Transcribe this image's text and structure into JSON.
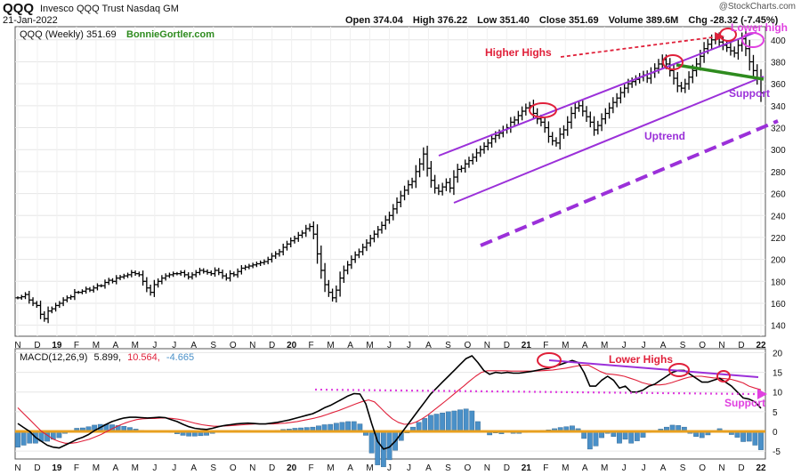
{
  "header": {
    "symbol": "QQQ",
    "name": "Invesco QQQ Trust Nasdaq GM",
    "watermark": "@StockCharts.com",
    "date": "21-Jan-2022",
    "open_label": "Open",
    "open": "374.04",
    "high_label": "High",
    "high": "376.22",
    "low_label": "Low",
    "low": "351.40",
    "close_label": "Close",
    "close": "351.69",
    "volume_label": "Volume",
    "volume": "389.6M",
    "chg_label": "Chg",
    "chg": "-28.32 (-7.45%)"
  },
  "colors": {
    "price": "#000000",
    "channel": "#9b30d9",
    "support_dashed": "#9b30d9",
    "green_line": "#2e8b1e",
    "circle": "#e0203a",
    "pink": "#e040e0",
    "annotation_red": "#e0203a",
    "annotation_purple": "#9b30d9",
    "macd_line": "#000000",
    "signal_line": "#e0203a",
    "histogram": "#4a90c8",
    "zero_line": "#e8a020",
    "watermark_green": "#2e8b1e"
  },
  "chart_data": [
    {
      "type": "line",
      "title": "QQQ (Weekly) 351.69",
      "source_tag": "BonnieGortler.com",
      "x_ticks": [
        "N",
        "D",
        "19",
        "F",
        "M",
        "A",
        "M",
        "J",
        "J",
        "A",
        "S",
        "O",
        "N",
        "D",
        "20",
        "F",
        "M",
        "A",
        "M",
        "J",
        "J",
        "A",
        "S",
        "O",
        "N",
        "D",
        "21",
        "F",
        "M",
        "A",
        "M",
        "J",
        "J",
        "A",
        "S",
        "O",
        "N",
        "D",
        "22"
      ],
      "y_ticks": [
        140,
        160,
        180,
        200,
        220,
        240,
        260,
        280,
        300,
        320,
        340,
        360,
        380,
        400
      ],
      "ylim": [
        130,
        412
      ],
      "series": [
        {
          "values": [
            165,
            166,
            168,
            163,
            160,
            158,
            150,
            146,
            153,
            155,
            158,
            160,
            163,
            165,
            166,
            170,
            170,
            171,
            173,
            172,
            174,
            176,
            176,
            179,
            181,
            180,
            183,
            184,
            185,
            186,
            188,
            187,
            186,
            180,
            174,
            170,
            177,
            180,
            183,
            185,
            186,
            187,
            187,
            188,
            186,
            184,
            186,
            188,
            190,
            189,
            188,
            187,
            190,
            188,
            185,
            183,
            187,
            186,
            189,
            192,
            193,
            194,
            195,
            196,
            197,
            198,
            200,
            203,
            205,
            207,
            211,
            214,
            217,
            219,
            222,
            224,
            228,
            230,
            223,
            205,
            190,
            177,
            170,
            165,
            172,
            183,
            190,
            195,
            200,
            204,
            207,
            211,
            215,
            219,
            223,
            227,
            231,
            236,
            240,
            246,
            252,
            258,
            263,
            268,
            271,
            280,
            287,
            296,
            283,
            272,
            265,
            262,
            266,
            270,
            265,
            275,
            282,
            283,
            287,
            290,
            293,
            297,
            300,
            303,
            306,
            310,
            313,
            315,
            318,
            320,
            325,
            327,
            331,
            335,
            338,
            340,
            333,
            328,
            325,
            320,
            312,
            308,
            306,
            314,
            318,
            325,
            333,
            338,
            340,
            335,
            330,
            325,
            318,
            322,
            328,
            333,
            338,
            343,
            347,
            352,
            356,
            360,
            362,
            364,
            366,
            368,
            365,
            370,
            374,
            378,
            382,
            378,
            372,
            365,
            358,
            356,
            360,
            366,
            372,
            378,
            385,
            392,
            396,
            400,
            402,
            398,
            395,
            393,
            390,
            388,
            395,
            401,
            392,
            380,
            372,
            365,
            351.69
          ],
          "low_high_ranges_included": false
        }
      ],
      "annotations": [
        "Higher Highs",
        "Lower high",
        "Uptrend",
        "Support"
      ]
    },
    {
      "type": "line",
      "title": "MACD(12,26,9) 5.899, 10.564, -4.665",
      "title_parts": [
        "MACD(12,26,9)",
        "5.899,",
        "10.564,",
        "-4.665"
      ],
      "x_ticks": [
        "N",
        "D",
        "19",
        "F",
        "M",
        "A",
        "M",
        "J",
        "J",
        "A",
        "S",
        "O",
        "N",
        "D",
        "20",
        "F",
        "M",
        "A",
        "M",
        "J",
        "J",
        "A",
        "S",
        "O",
        "N",
        "D",
        "21",
        "F",
        "M",
        "A",
        "M",
        "J",
        "J",
        "A",
        "S",
        "O",
        "N",
        "D",
        "22"
      ],
      "y_ticks": [
        -5,
        0,
        5,
        10,
        15,
        20
      ],
      "ylim": [
        -7,
        21
      ],
      "series": [
        {
          "name": "MACD",
          "values": [
            2,
            1,
            0,
            -1.5,
            -2.5,
            -3.5,
            -4,
            -4.2,
            -3.5,
            -2.8,
            -2,
            -1.5,
            -0.8,
            0.2,
            1,
            1.8,
            2.5,
            3,
            3.4,
            3.6,
            3.6,
            3.5,
            3.4,
            3.5,
            3.6,
            3.5,
            3,
            2.5,
            1.8,
            1.2,
            0.8,
            0.6,
            0.5,
            0.8,
            1.2,
            1.5,
            1.7,
            1.9,
            2,
            2.1,
            2,
            1.9,
            1.9,
            2.1,
            2.3,
            2.6,
            2.9,
            3.3,
            3.7,
            4.1,
            4.5,
            5.2,
            6,
            6.6,
            7.4,
            8.2,
            9,
            9.6,
            9.5,
            7,
            2,
            -2.5,
            -4.5,
            -4,
            -2.5,
            -0.5,
            1.5,
            3.5,
            5.5,
            7.5,
            9.5,
            11,
            12.5,
            14,
            15.5,
            17,
            18.5,
            19.2,
            17.5,
            15.5,
            14.5,
            15,
            14.8,
            15,
            14.8,
            14.8,
            15,
            15.2,
            15.5,
            15.8,
            16,
            16.5,
            17,
            17.5,
            18,
            17.5,
            15,
            11.5,
            11.5,
            13,
            14,
            13,
            11,
            11.5,
            10,
            10,
            10.5,
            11.5,
            12,
            13,
            14,
            15,
            15.5,
            15.5,
            14.5,
            13.5,
            12.5,
            12.5,
            13,
            13.5,
            12.5,
            11.5,
            10,
            8.5,
            8.2,
            7.5,
            5.899
          ]
        },
        {
          "name": "Signal",
          "values": [
            6,
            4.5,
            3,
            1.5,
            0,
            -1,
            -2,
            -2.6,
            -3,
            -3,
            -2.8,
            -2.4,
            -2,
            -1.4,
            -0.8,
            0,
            0.8,
            1.5,
            2.1,
            2.6,
            3,
            3.2,
            3.3,
            3.3,
            3.4,
            3.4,
            3.3,
            3.1,
            2.8,
            2.4,
            2,
            1.7,
            1.5,
            1.3,
            1.3,
            1.4,
            1.5,
            1.6,
            1.7,
            1.8,
            1.9,
            1.9,
            1.9,
            1.9,
            2,
            2.1,
            2.3,
            2.5,
            2.8,
            3.1,
            3.4,
            3.8,
            4.3,
            4.8,
            5.3,
            5.9,
            6.5,
            7.1,
            7.6,
            8,
            7.5,
            6,
            4.5,
            3.2,
            2.3,
            1.8,
            1.9,
            2.4,
            3.2,
            4.2,
            5.4,
            6.6,
            7.8,
            9,
            10.3,
            11.5,
            12.8,
            14,
            15,
            15.4,
            15.4,
            15.4,
            15.4,
            15.3,
            15.3,
            15.3,
            15.3,
            15.3,
            15.4,
            15.5,
            15.6,
            15.8,
            16,
            16.3,
            16.6,
            16.8,
            16.8,
            16,
            15.2,
            14.6,
            14.5,
            14.3,
            14,
            13.5,
            13,
            12.4,
            12,
            11.8,
            11.8,
            12,
            12.4,
            12.9,
            13.4,
            13.8,
            14,
            14,
            13.8,
            13.6,
            13.5,
            13.4,
            13.2,
            12.8,
            12.3,
            11.5,
            11,
            10.564
          ]
        },
        {
          "name": "Histogram",
          "type": "bar",
          "values": [
            -4,
            -3.5,
            -3,
            -3,
            -2.5,
            -2.5,
            -2,
            -1.6,
            -0.5,
            0.2,
            0.8,
            0.9,
            1.2,
            1.6,
            1.8,
            1.8,
            1.7,
            1.5,
            1.3,
            1,
            0.6,
            0.3,
            0.1,
            0.2,
            0.2,
            0.1,
            -0.3,
            -0.6,
            -1,
            -1.2,
            -1.2,
            -1.1,
            -1,
            -0.5,
            -0.1,
            0.1,
            0.2,
            0.3,
            0.3,
            0.3,
            0.1,
            0,
            0,
            0.2,
            0.3,
            0.5,
            0.6,
            0.8,
            0.9,
            1,
            1.1,
            1.4,
            1.7,
            1.8,
            2.1,
            2.3,
            2.5,
            2.5,
            1.9,
            -1,
            -5.5,
            -8.5,
            -9,
            -7.2,
            -4.8,
            -2.3,
            -0.4,
            1.1,
            2.3,
            3.3,
            4.1,
            4.4,
            4.7,
            5,
            5.2,
            5.5,
            5.7,
            5.2,
            2.5,
            0.1,
            -0.9,
            -0.4,
            -0.6,
            -0.3,
            -0.5,
            -0.5,
            -0.3,
            -0.1,
            0.1,
            0.3,
            0.4,
            0.7,
            1,
            1.2,
            1.4,
            0.7,
            -1.8,
            -4.5,
            -3.7,
            -1.6,
            -0.5,
            -1.3,
            -3,
            -2,
            -3,
            -2.4,
            -1.5,
            -0.3,
            0.2,
            0.6,
            1.1,
            1.6,
            1.5,
            1.1,
            -0.5,
            -1.3,
            -1.6,
            -0.9,
            -0.2,
            0.7,
            -0.3,
            -0.8,
            -1.5,
            -2.6,
            -2.5,
            -3.5,
            -4.665
          ]
        }
      ],
      "annotations": [
        "Lower Highs",
        "Support"
      ]
    }
  ]
}
